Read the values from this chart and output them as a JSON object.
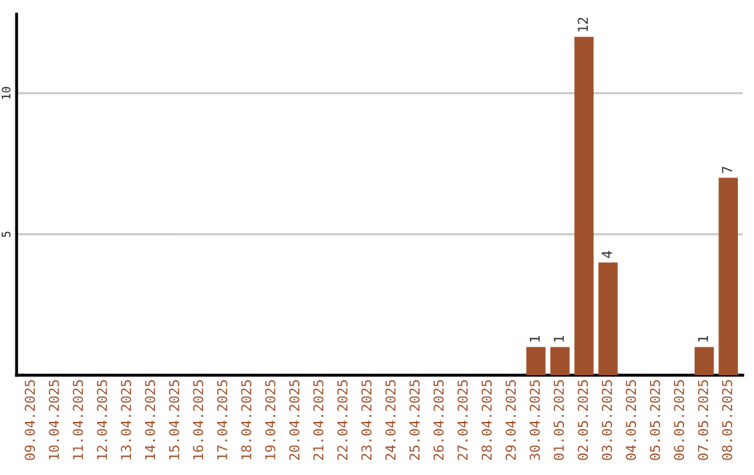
{
  "chart_data": {
    "type": "bar",
    "categories": [
      "09.04.2025",
      "10.04.2025",
      "11.04.2025",
      "12.04.2025",
      "13.04.2025",
      "14.04.2025",
      "15.04.2025",
      "16.04.2025",
      "17.04.2025",
      "18.04.2025",
      "19.04.2025",
      "20.04.2025",
      "21.04.2025",
      "22.04.2025",
      "23.04.2025",
      "24.04.2025",
      "25.04.2025",
      "26.04.2025",
      "27.04.2025",
      "28.04.2025",
      "29.04.2025",
      "30.04.2025",
      "01.05.2025",
      "02.05.2025",
      "03.05.2025",
      "04.05.2025",
      "05.05.2025",
      "06.05.2025",
      "07.05.2025",
      "08.05.2025"
    ],
    "values": [
      0,
      0,
      0,
      0,
      0,
      0,
      0,
      0,
      0,
      0,
      0,
      0,
      0,
      0,
      0,
      0,
      0,
      0,
      0,
      0,
      0,
      1,
      1,
      12,
      4,
      0,
      0,
      0,
      1,
      7
    ],
    "value_labels": [
      null,
      null,
      null,
      null,
      null,
      null,
      null,
      null,
      null,
      null,
      null,
      null,
      null,
      null,
      null,
      null,
      null,
      null,
      null,
      null,
      null,
      "1",
      "1",
      "12",
      "4",
      null,
      null,
      null,
      "1",
      "7"
    ],
    "color": "#a0522d",
    "ylim": [
      0,
      12.8
    ],
    "yticks": [
      5,
      10
    ],
    "grid": "y"
  }
}
